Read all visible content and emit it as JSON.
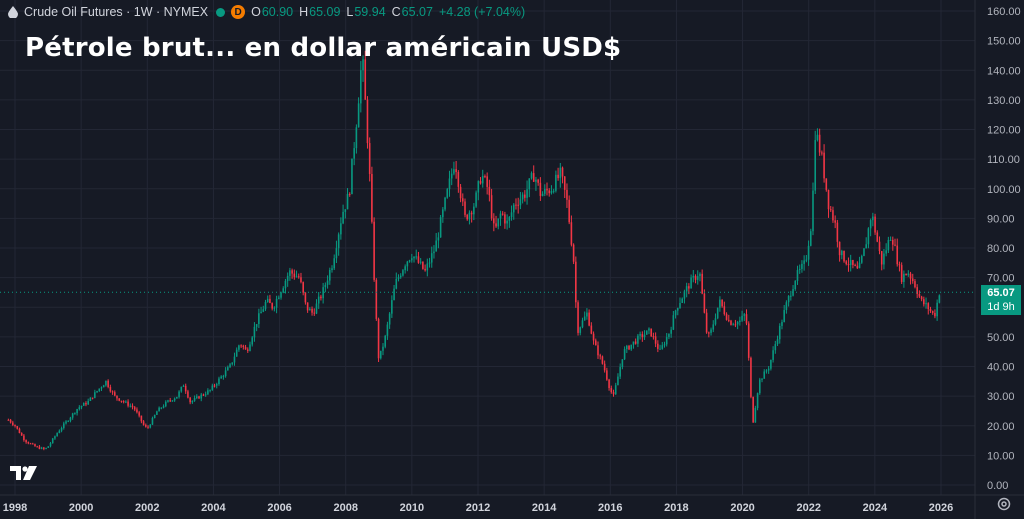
{
  "header": {
    "symbol": "Crude Oil Futures · 1W · NYMEX",
    "badge": "D",
    "o_label": "O",
    "o_value": "60.90",
    "h_label": "H",
    "h_value": "65.09",
    "l_label": "L",
    "l_value": "59.94",
    "c_label": "C",
    "c_value": "65.07",
    "change": "+4.28 (+7.04%)"
  },
  "headline": "Pétrole brut... en dollar américain USD$",
  "price_tag": {
    "price": "65.07",
    "countdown": "1d 9h"
  },
  "colors": {
    "up": "#089981",
    "down": "#f23645",
    "background": "#161a25",
    "grid": "#232735",
    "text": "#d1d4dc"
  },
  "icons": {
    "logo": "tradingview-logo-icon",
    "settings": "gear-icon",
    "drop": "oil-drop-icon"
  },
  "chart_data": {
    "type": "candlestick",
    "title": "Pétrole brut... en dollar américain USD$",
    "symbol": "Crude Oil Futures",
    "interval": "1W",
    "exchange": "NYMEX",
    "y_axis_position": "right",
    "grid": true,
    "ylim": [
      0,
      160
    ],
    "y_ticks": [
      "0.00",
      "10.00",
      "20.00",
      "30.00",
      "40.00",
      "50.00",
      "60.00",
      "70.00",
      "80.00",
      "90.00",
      "100.00",
      "110.00",
      "120.00",
      "130.00",
      "140.00",
      "150.00",
      "160.00"
    ],
    "x_ticks": [
      "1998",
      "2000",
      "2002",
      "2004",
      "2006",
      "2008",
      "2010",
      "2012",
      "2014",
      "2016",
      "2018",
      "2020",
      "2022",
      "2024",
      "2026"
    ],
    "last_price": 65.07,
    "series": [
      {
        "x": [
          1997.8,
          1998.0,
          1998.3,
          1998.6,
          1998.9,
          1999.0,
          1999.3,
          1999.6,
          1999.9,
          2000.2,
          2000.5,
          2000.75,
          2001.0,
          2001.3,
          2001.6,
          2001.9,
          2002.0,
          2002.3,
          2002.6,
          2002.9,
          2003.1,
          2003.3,
          2003.6,
          2003.9,
          2004.2,
          2004.5,
          2004.8,
          2005.0,
          2005.3,
          2005.6,
          2005.8,
          2006.0,
          2006.3,
          2006.6,
          2006.8,
          2007.0,
          2007.3,
          2007.6,
          2007.9,
          2008.1,
          2008.3,
          2008.5,
          2008.7,
          2008.9,
          2009.0,
          2009.2,
          2009.5,
          2009.8,
          2010.0,
          2010.4,
          2010.7,
          2010.9,
          2011.1,
          2011.3,
          2011.6,
          2011.9,
          2012.1,
          2012.3,
          2012.5,
          2012.7,
          2012.9,
          2013.1,
          2013.4,
          2013.7,
          2013.9,
          2014.2,
          2014.5,
          2014.7,
          2014.9,
          2015.0,
          2015.3,
          2015.5,
          2015.8,
          2016.0,
          2016.1,
          2016.4,
          2016.7,
          2016.9,
          2017.2,
          2017.5,
          2017.8,
          2018.0,
          2018.4,
          2018.7,
          2018.9,
          2019.0,
          2019.3,
          2019.6,
          2019.9,
          2020.1,
          2020.2,
          2020.3,
          2020.5,
          2020.8,
          2021.0,
          2021.3,
          2021.6,
          2021.9,
          2022.1,
          2022.2,
          2022.4,
          2022.6,
          2022.8,
          2022.95,
          2023.2,
          2023.5,
          2023.7,
          2023.9,
          2024.2,
          2024.5,
          2024.8,
          2025.0,
          2025.2,
          2025.4,
          2025.6,
          2025.8,
          2025.95
        ],
        "close": [
          22,
          20,
          15,
          13,
          12,
          13,
          18,
          22,
          26,
          28,
          32,
          35,
          30,
          28,
          26,
          20,
          19,
          25,
          28,
          30,
          34,
          28,
          30,
          32,
          36,
          40,
          48,
          45,
          55,
          62,
          60,
          65,
          72,
          70,
          60,
          58,
          65,
          75,
          92,
          98,
          120,
          145,
          110,
          60,
          42,
          50,
          68,
          75,
          78,
          72,
          80,
          90,
          100,
          110,
          90,
          95,
          105,
          100,
          85,
          92,
          88,
          95,
          98,
          105,
          98,
          100,
          105,
          95,
          75,
          52,
          58,
          48,
          40,
          32,
          30,
          45,
          48,
          50,
          52,
          45,
          52,
          60,
          68,
          72,
          52,
          50,
          62,
          55,
          55,
          58,
          40,
          20,
          35,
          40,
          48,
          60,
          70,
          75,
          90,
          120,
          110,
          95,
          88,
          78,
          75,
          72,
          80,
          92,
          75,
          85,
          70,
          72,
          68,
          62,
          60,
          57,
          65.07
        ]
      }
    ]
  }
}
